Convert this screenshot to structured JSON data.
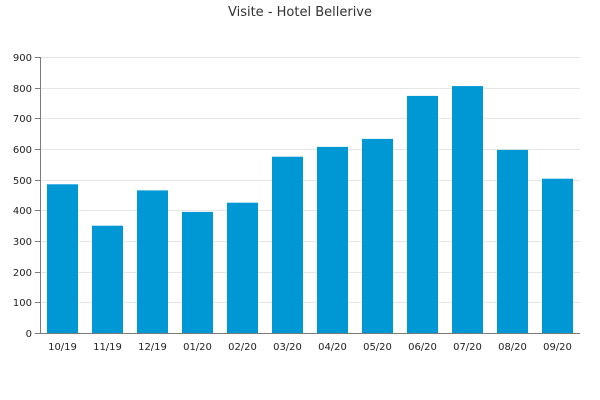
{
  "chart_data": {
    "type": "bar",
    "title": "Visite - Hotel Bellerive",
    "xlabel": "",
    "ylabel": "",
    "categories": [
      "10/19",
      "11/19",
      "12/19",
      "01/20",
      "02/20",
      "03/20",
      "04/20",
      "05/20",
      "06/20",
      "07/20",
      "08/20",
      "09/20"
    ],
    "values": [
      485,
      350,
      465,
      395,
      425,
      575,
      607,
      633,
      773,
      805,
      597,
      503
    ],
    "ylim": [
      0,
      900
    ],
    "yticks": [
      0,
      100,
      200,
      300,
      400,
      500,
      600,
      700,
      800,
      900
    ],
    "grid": true,
    "legend": "none",
    "bar_color": "#0098d4"
  }
}
